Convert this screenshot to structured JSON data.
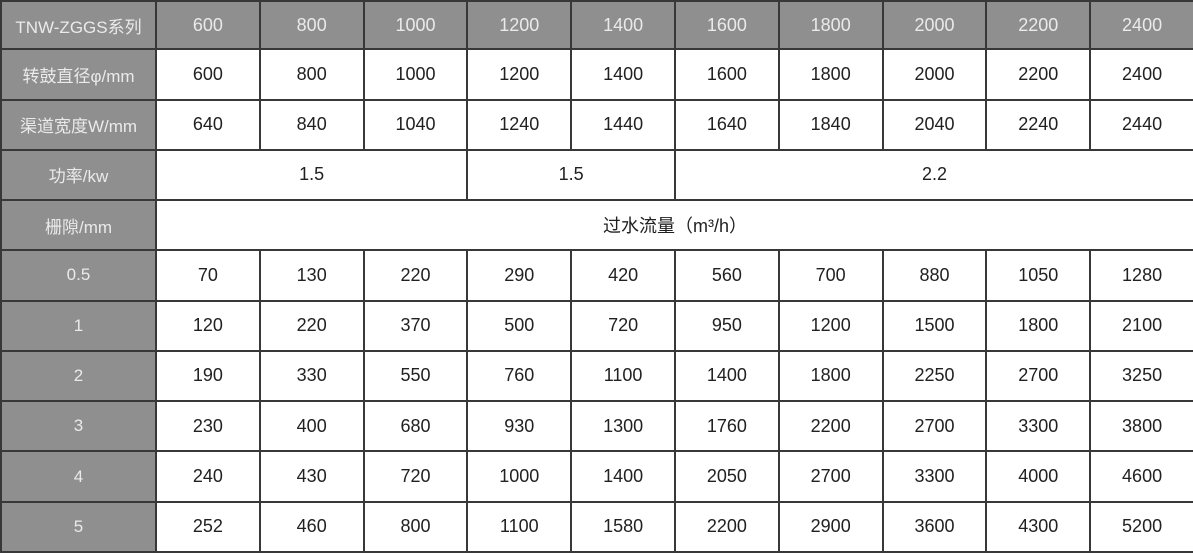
{
  "colors": {
    "header_bg": "#8f8f8f",
    "header_text": "#eaeaea",
    "border": "#383838",
    "cell_bg": "#ffffff",
    "cell_text": "#212121"
  },
  "table": {
    "series_title": "TNW-ZGGS系列",
    "flow_banner": "过水流量（m³/h）",
    "rows": [
      {
        "label": "TNW-ZGGS系列",
        "header_row": true,
        "cells": [
          "600",
          "800",
          "1000",
          "1200",
          "1400",
          "1600",
          "1800",
          "2000",
          "2200",
          "2400"
        ]
      },
      {
        "label": "转鼓直径φ/mm",
        "cells": [
          "600",
          "800",
          "1000",
          "1200",
          "1400",
          "1600",
          "1800",
          "2000",
          "2200",
          "2400"
        ]
      },
      {
        "label": "渠道宽度W/mm",
        "cells": [
          "640",
          "840",
          "1040",
          "1240",
          "1440",
          "1640",
          "1840",
          "2040",
          "2240",
          "2440"
        ]
      },
      {
        "label": "功率/kw",
        "cells": [
          {
            "text": "1.5",
            "span": 3
          },
          {
            "text": "1.5",
            "span": 2
          },
          {
            "text": "2.2",
            "span": 5
          }
        ]
      },
      {
        "label": "栅隙/mm",
        "cells": [
          {
            "text": "过水流量（m³/h）",
            "span": 10
          }
        ]
      },
      {
        "label": "0.5",
        "cells": [
          "70",
          "130",
          "220",
          "290",
          "420",
          "560",
          "700",
          "880",
          "1050",
          "1280"
        ]
      },
      {
        "label": "1",
        "cells": [
          "120",
          "220",
          "370",
          "500",
          "720",
          "950",
          "1200",
          "1500",
          "1800",
          "2100"
        ]
      },
      {
        "label": "2",
        "cells": [
          "190",
          "330",
          "550",
          "760",
          "1100",
          "1400",
          "1800",
          "2250",
          "2700",
          "3250"
        ]
      },
      {
        "label": "3",
        "cells": [
          "230",
          "400",
          "680",
          "930",
          "1300",
          "1760",
          "2200",
          "2700",
          "3300",
          "3800"
        ]
      },
      {
        "label": "4",
        "cells": [
          "240",
          "430",
          "720",
          "1000",
          "1400",
          "2050",
          "2700",
          "3300",
          "4000",
          "4600"
        ]
      },
      {
        "label": "5",
        "cells": [
          "252",
          "460",
          "800",
          "1100",
          "1580",
          "2200",
          "2900",
          "3600",
          "4300",
          "5200"
        ]
      }
    ]
  }
}
